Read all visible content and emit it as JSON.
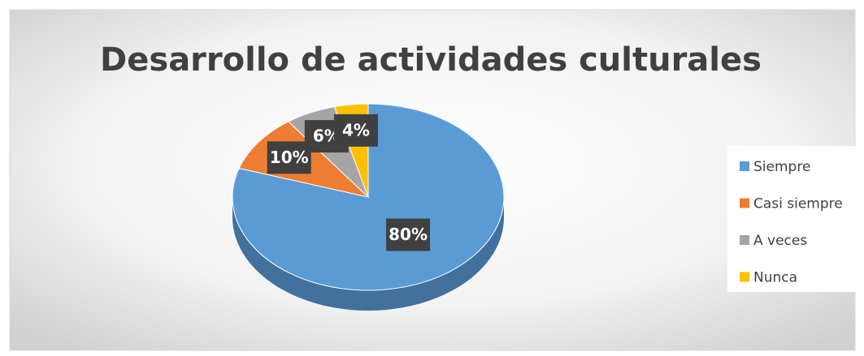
{
  "chart_data": {
    "type": "pie",
    "title": "Desarrollo de actividades culturales",
    "categories": [
      "Siempre",
      "Casi siempre",
      "A veces",
      "Nunca"
    ],
    "values": [
      80,
      10,
      6,
      4
    ],
    "value_labels": [
      "80%",
      "10%",
      "6%",
      "4%"
    ],
    "colors": [
      "#5b9bd5",
      "#ed7d31",
      "#a5a5a5",
      "#ffc000"
    ],
    "legend": "right"
  }
}
